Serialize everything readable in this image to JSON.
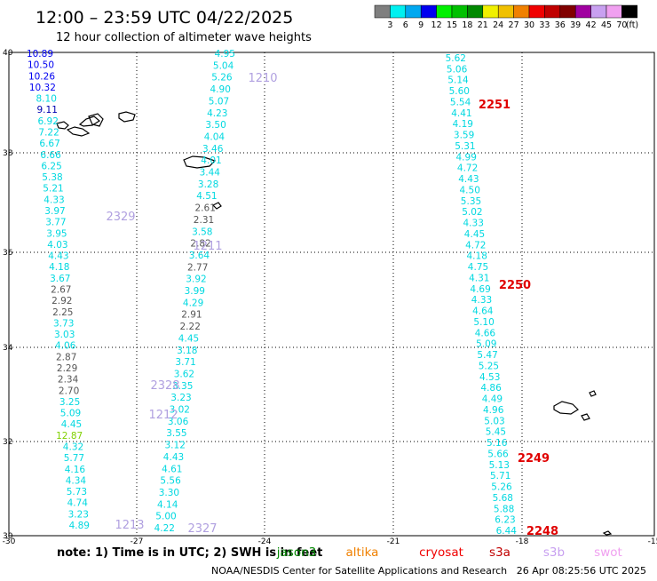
{
  "header": {
    "title": "12:00 – 23:59 UTC 04/22/2025",
    "subtitle": "12 hour collection of altimeter wave heights"
  },
  "legend": {
    "unit": "(ft)",
    "bins": [
      {
        "label": "3",
        "color": "#7f7f7f"
      },
      {
        "label": "6",
        "color": "#00f0f0"
      },
      {
        "label": "9",
        "color": "#00a8f0"
      },
      {
        "label": "12",
        "color": "#0000f0"
      },
      {
        "label": "15",
        "color": "#00f000"
      },
      {
        "label": "18",
        "color": "#00c000"
      },
      {
        "label": "21",
        "color": "#008800"
      },
      {
        "label": "24",
        "color": "#f0f000"
      },
      {
        "label": "27",
        "color": "#f0c000"
      },
      {
        "label": "30",
        "color": "#f08000"
      },
      {
        "label": "33",
        "color": "#f00000"
      },
      {
        "label": "36",
        "color": "#c00000"
      },
      {
        "label": "39",
        "color": "#800000"
      },
      {
        "label": "42",
        "color": "#a000a0"
      },
      {
        "label": "45",
        "color": "#c8a0f0"
      },
      {
        "label": "70",
        "color": "#f0a0f0"
      },
      {
        "label": "",
        "color": "#000000"
      }
    ]
  },
  "map": {
    "lon_ticks": [
      "-30",
      "-27",
      "-24",
      "-21",
      "-18",
      "-15"
    ],
    "lat_ticks": [
      "40",
      "38",
      "36",
      "34",
      "32",
      "30"
    ]
  },
  "tracks": {
    "track_a": [
      "10.89",
      "10.50",
      "10.26",
      "10.32",
      "8.10",
      "9.11",
      "6.92",
      "7.22",
      "6.67",
      "6.66",
      "6.25",
      "5.38",
      "5.21",
      "4.33",
      "3.97",
      "3.77",
      "3.95",
      "4.03",
      "4.43",
      "4.18",
      "3.67",
      "2.67",
      "2.92",
      "2.25",
      "3.73",
      "3.03",
      "4.06",
      "2.87",
      "2.29",
      "2.34",
      "2.70",
      "3.25",
      "5.09",
      "4.45",
      "12.87",
      "4.32",
      "5.77",
      "4.16",
      "4.34",
      "5.73",
      "4.74",
      "3.23",
      "4.89"
    ],
    "track_b": [
      "4.95",
      "5.04",
      "5.26",
      "4.90",
      "5.07",
      "4.23",
      "3.50",
      "4.04",
      "3.46",
      "4.01",
      "3.44",
      "3.28",
      "4.51",
      "2.61",
      "2.31",
      "3.58",
      "2.82",
      "3.64",
      "2.77",
      "3.92",
      "3.99",
      "4.29",
      "2.91",
      "2.22",
      "4.45",
      "3.18",
      "3.71",
      "3.62",
      "3.35",
      "3.23",
      "3.02",
      "3.06",
      "3.55",
      "3.12",
      "4.43",
      "4.61",
      "5.56",
      "3.30",
      "4.14",
      "5.00",
      "4.22"
    ],
    "track_c": [
      "5.62",
      "5.06",
      "5.14",
      "5.60",
      "5.54",
      "4.41",
      "4.19",
      "3.59",
      "5.31",
      "4.99",
      "4.72",
      "4.43",
      "4.50",
      "5.35",
      "5.02",
      "4.33",
      "4.45",
      "4.72",
      "4.18",
      "4.75",
      "4.31",
      "4.69",
      "4.33",
      "4.64",
      "5.10",
      "4.66",
      "5.09",
      "5.47",
      "5.25",
      "4.53",
      "4.86",
      "4.49",
      "4.96",
      "5.03",
      "5.45",
      "5.16",
      "5.66",
      "5.13",
      "5.71",
      "5.26",
      "5.68",
      "5.88",
      "6.23",
      "6.44"
    ]
  },
  "time_labels": {
    "lav": [
      "1210",
      "2329",
      "1211",
      "2328",
      "1212",
      "1213",
      "2327"
    ],
    "red": [
      "2251",
      "2250",
      "2249",
      "2248"
    ]
  },
  "footer": {
    "note": "note:  1) Time is in UTC;  2) SWH is in feet",
    "sat_labels": [
      {
        "text": "jason3",
        "color": "#008800"
      },
      {
        "text": "altika",
        "color": "#f08000"
      },
      {
        "text": "cryosat",
        "color": "#f00000"
      },
      {
        "text": "s3a",
        "color": "#c00000"
      },
      {
        "text": "s3b",
        "color": "#c8a0f0"
      },
      {
        "text": "swot",
        "color": "#f0a0f0"
      }
    ],
    "credit": "NOAA/NESDIS Center for Satellite Applications and Research",
    "generated": "26 Apr 08:25:56 UTC 2025"
  }
}
